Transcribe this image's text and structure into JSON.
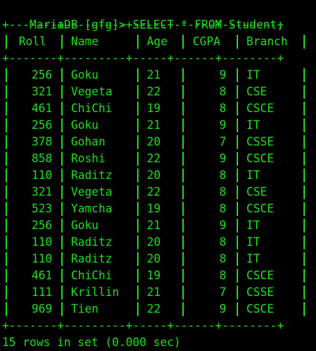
{
  "terminal": {
    "prompt": "MariaDB [gfg]>",
    "command": "SELECT * FROM Student;",
    "border": "+-------+---------+-----+------+--------+",
    "footer": "15 rows in set (0.000 sec)",
    "text_color": "#1BE01B",
    "background_color": "#000000"
  },
  "table": {
    "columns": [
      "Roll",
      "Name",
      "Age",
      "CGPA",
      "Branch"
    ],
    "rows": [
      [
        "256",
        "Goku",
        "21",
        "9",
        "IT"
      ],
      [
        "321",
        "Vegeta",
        "22",
        "8",
        "CSE"
      ],
      [
        "461",
        "ChiChi",
        "19",
        "8",
        "CSCE"
      ],
      [
        "256",
        "Goku",
        "21",
        "9",
        "IT"
      ],
      [
        "378",
        "Gohan",
        "20",
        "7",
        "CSSE"
      ],
      [
        "858",
        "Roshi",
        "22",
        "9",
        "CSCE"
      ],
      [
        "110",
        "Raditz",
        "20",
        "8",
        "IT"
      ],
      [
        "321",
        "Vegeta",
        "22",
        "8",
        "CSE"
      ],
      [
        "523",
        "Yamcha",
        "19",
        "8",
        "CSCE"
      ],
      [
        "256",
        "Goku",
        "21",
        "9",
        "IT"
      ],
      [
        "110",
        "Raditz",
        "20",
        "8",
        "IT"
      ],
      [
        "110",
        "Raditz",
        "20",
        "8",
        "IT"
      ],
      [
        "461",
        "ChiChi",
        "19",
        "8",
        "CSCE"
      ],
      [
        "111",
        "Krillin",
        "21",
        "7",
        "CSSE"
      ],
      [
        "969",
        "Tien",
        "22",
        "9",
        "CSCE"
      ]
    ]
  }
}
